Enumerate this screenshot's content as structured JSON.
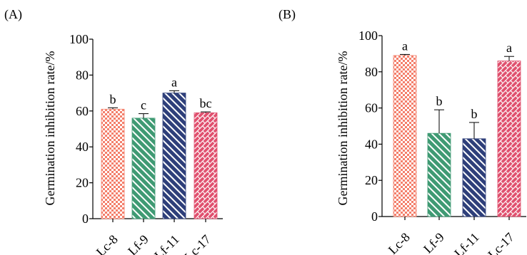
{
  "chart_data": [
    {
      "type": "bar",
      "panel_label": "(A)",
      "ylabel": "Germination inhibition rate/%",
      "ylim": [
        0,
        100
      ],
      "yticks": [
        0,
        20,
        40,
        60,
        80,
        100
      ],
      "categories": [
        "Lc-8",
        "Lf-9",
        "Lf-11",
        "Lc-17"
      ],
      "values": [
        61,
        56,
        70,
        59
      ],
      "errors": [
        0.8,
        2.5,
        1.3,
        0.5
      ],
      "significance": [
        "b",
        "c",
        "a",
        "bc"
      ],
      "fill_colors": [
        "#f47f6b",
        "#3f9a73",
        "#2e3f7a",
        "#e0506e"
      ],
      "patterns": [
        "checker",
        "diagonal",
        "diagonal",
        "brick"
      ]
    },
    {
      "type": "bar",
      "panel_label": "(B)",
      "ylabel": "Germination inhibition rate/%",
      "ylim": [
        0,
        100
      ],
      "yticks": [
        0,
        20,
        40,
        60,
        80,
        100
      ],
      "categories": [
        "Lc-8",
        "Lf-9",
        "Lf-11",
        "Lc-17"
      ],
      "values": [
        89,
        46,
        43,
        86
      ],
      "errors": [
        0.6,
        13,
        9,
        2.5
      ],
      "significance": [
        "a",
        "b",
        "b",
        "a"
      ],
      "fill_colors": [
        "#f47f6b",
        "#3f9a73",
        "#2e3f7a",
        "#e0506e"
      ],
      "patterns": [
        "checker",
        "diagonal",
        "diagonal",
        "brick"
      ]
    }
  ]
}
